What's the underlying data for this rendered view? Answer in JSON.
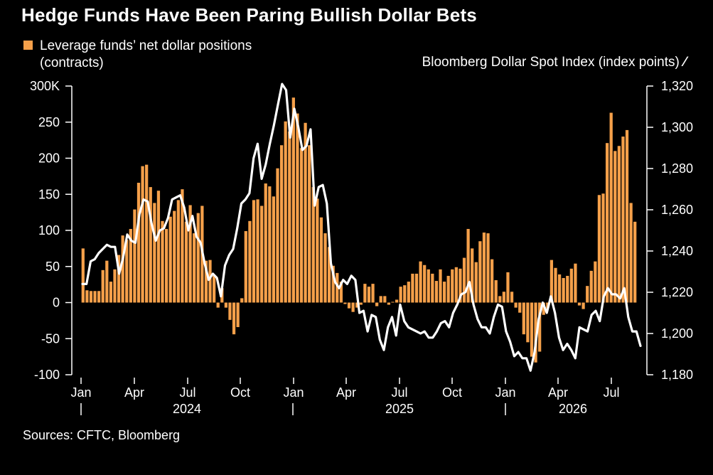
{
  "title": "Hedge Funds Have Been Paring Bullish Dollar Bets",
  "source": "Sources: CFTC, Bloomberg",
  "colors": {
    "bars": "#f5a04a",
    "line": "#ffffff",
    "background": "#000000",
    "axis": "#ffffff"
  },
  "legend": {
    "left_line1": "Leverage funds’ net dollar positions",
    "left_line2": "(contracts)",
    "right": "Bloomberg Dollar Spot Index (index points)"
  },
  "chart_data": {
    "type": "bar+line",
    "title": "Hedge Funds Have Been Paring Bullish Dollar Bets",
    "left_axis": {
      "ticks": [
        "300K",
        "250",
        "200",
        "150",
        "100",
        "50",
        "0",
        "-50",
        "-100"
      ],
      "tick_values": [
        300,
        250,
        200,
        150,
        100,
        50,
        0,
        -50,
        -100
      ],
      "ylim": [
        -100,
        300
      ],
      "units": "thousand contracts"
    },
    "right_axis": {
      "ticks": [
        "1,320",
        "1,300",
        "1,280",
        "1,260",
        "1,240",
        "1,220",
        "1,200",
        "1,180"
      ],
      "tick_values": [
        1320,
        1300,
        1280,
        1260,
        1240,
        1220,
        1200,
        1180
      ],
      "ylim": [
        1180,
        1320
      ]
    },
    "x_axis": {
      "month_labels": [
        "Jan",
        "Apr",
        "Jul",
        "Oct",
        "Jan",
        "Apr",
        "Jul",
        "Oct",
        "Jan",
        "Apr",
        "Jul"
      ],
      "year_labels": [
        "2024",
        "2025",
        "2026"
      ]
    },
    "series": [
      {
        "name": "Leverage funds’ net dollar positions",
        "kind": "bar",
        "values": [
          75,
          17,
          16,
          16,
          16,
          45,
          58,
          29,
          46,
          66,
          93,
          87,
          102,
          129,
          166,
          189,
          191,
          160,
          138,
          155,
          113,
          102,
          119,
          127,
          142,
          157,
          112,
          135,
          96,
          124,
          134,
          58,
          59,
          37,
          -7,
          20,
          -7,
          -24,
          -44,
          -34,
          6,
          99,
          113,
          142,
          143,
          134,
          165,
          161,
          147,
          186,
          218,
          251,
          237,
          284,
          262,
          214,
          249,
          218,
          160,
          144,
          118,
          96,
          77,
          51,
          41,
          29,
          -2,
          -8,
          -13,
          -7,
          -3,
          26,
          22,
          26,
          -5,
          9,
          9,
          -3,
          1,
          4,
          22,
          24,
          29,
          40,
          40,
          57,
          52,
          46,
          40,
          30,
          46,
          29,
          37,
          46,
          49,
          47,
          62,
          102,
          75,
          56,
          85,
          97,
          96,
          60,
          31,
          9,
          15,
          42,
          15,
          -7,
          -14,
          -44,
          -55,
          -75,
          -83,
          -68,
          -17,
          -8,
          59,
          48,
          39,
          34,
          37,
          47,
          54,
          -4,
          -9,
          23,
          44,
          57,
          149,
          151,
          221,
          263,
          210,
          217,
          230,
          239,
          138,
          112
        ]
      },
      {
        "name": "Bloomberg Dollar Spot Index",
        "kind": "line",
        "values": [
          1224,
          1224,
          1235,
          1236,
          1239,
          1241,
          1243,
          1242,
          1242,
          1229,
          1237,
          1248,
          1245,
          1244,
          1258,
          1265,
          1264,
          1253,
          1245,
          1250,
          1251,
          1256,
          1265,
          1266,
          1267,
          1261,
          1250,
          1257,
          1247,
          1244,
          1234,
          1226,
          1229,
          1227,
          1218,
          1233,
          1238,
          1241,
          1251,
          1263,
          1265,
          1268,
          1285,
          1292,
          1275,
          1282,
          1292,
          1301,
          1311,
          1321,
          1318,
          1295,
          1309,
          1300,
          1289,
          1291,
          1299,
          1262,
          1271,
          1272,
          1263,
          1234,
          1225,
          1222,
          1226,
          1224,
          1228,
          1226,
          1210,
          1211,
          1201,
          1209,
          1208,
          1197,
          1192,
          1203,
          1208,
          1199,
          1214,
          1206,
          1203,
          1202,
          1201,
          1200,
          1201,
          1198,
          1198,
          1201,
          1205,
          1206,
          1203,
          1210,
          1214,
          1219,
          1220,
          1225,
          1214,
          1207,
          1203,
          1203,
          1200,
          1208,
          1214,
          1213,
          1201,
          1196,
          1189,
          1191,
          1188,
          1188,
          1182,
          1191,
          1207,
          1215,
          1210,
          1218,
          1210,
          1198,
          1192,
          1195,
          1192,
          1188,
          1203,
          1202,
          1201,
          1209,
          1211,
          1206,
          1218,
          1222,
          1219,
          1219,
          1217,
          1222,
          1208,
          1201,
          1201,
          1194
        ]
      }
    ],
    "grid": false,
    "legend_placement": "top"
  }
}
